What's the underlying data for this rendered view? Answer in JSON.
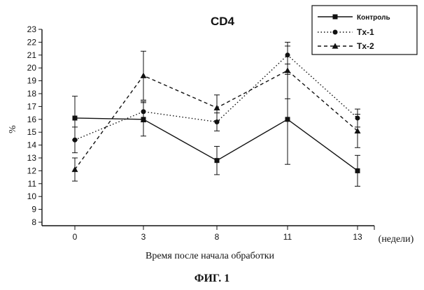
{
  "chart_data": {
    "type": "line",
    "title": "CD4",
    "xlabel": "Время после начала обработки",
    "x_unit_label": "(недели)",
    "ylabel": "%",
    "caption": "ФИГ. 1",
    "categories": [
      "0",
      "3",
      "8",
      "11",
      "13"
    ],
    "ylim": [
      8,
      23
    ],
    "yticks": [
      8,
      9,
      10,
      11,
      12,
      13,
      14,
      15,
      16,
      17,
      18,
      19,
      20,
      21,
      22,
      23
    ],
    "grid": false,
    "legend_position": "top-right",
    "series": [
      {
        "name": "Контроль",
        "marker": "square",
        "line_style": "solid",
        "color": "#111111",
        "values": [
          16.1,
          16.0,
          12.8,
          16.0,
          12.0
        ],
        "errors": [
          1.7,
          1.3,
          1.1,
          3.5,
          1.2
        ]
      },
      {
        "name": "Tx-1",
        "marker": "circle",
        "line_style": "dotted",
        "color": "#111111",
        "values": [
          14.4,
          16.6,
          15.8,
          21.0,
          16.1
        ],
        "errors": [
          1.0,
          0.8,
          0.7,
          0.7,
          0.7
        ]
      },
      {
        "name": "Tx-2",
        "marker": "triangle",
        "line_style": "dashed",
        "color": "#111111",
        "values": [
          12.1,
          19.4,
          16.9,
          19.8,
          15.1
        ],
        "errors": [
          0.9,
          1.9,
          1.0,
          2.2,
          1.3
        ]
      }
    ]
  }
}
